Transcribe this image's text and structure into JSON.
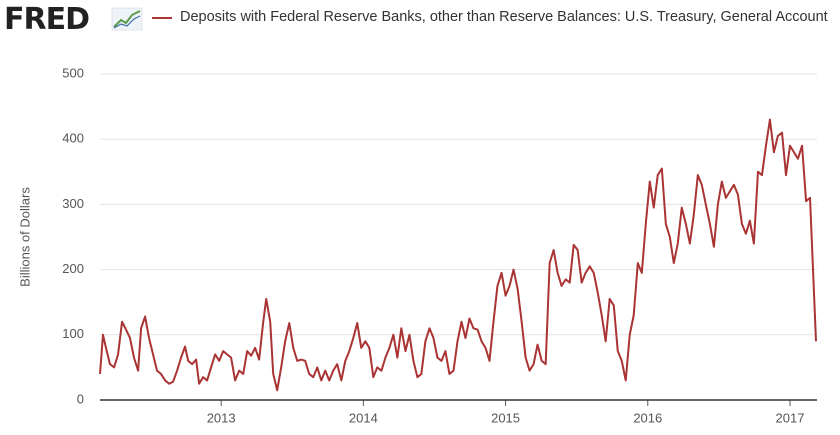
{
  "chart_data": {
    "type": "line",
    "logo": "FRED",
    "title": "Deposits with Federal Reserve Banks, other than Reserve Balances: U.S. Treasury, General Account",
    "y_label": "Billions of Dollars",
    "xlim": [
      2012.148,
      2017.19
    ],
    "xticks": [
      2013,
      2014,
      2015,
      2016,
      2017
    ],
    "ylim": [
      0,
      500
    ],
    "yticks": [
      0,
      100,
      200,
      300,
      400,
      500
    ],
    "grid": true,
    "series": [
      {
        "name": "Deposits with Federal Reserve Banks, other than Reserve Balances: U.S. Treasury, General Account",
        "color": "#aa3333",
        "x": [
          2012.148,
          2012.169,
          2012.19,
          2012.218,
          2012.247,
          2012.275,
          2012.303,
          2012.331,
          2012.359,
          2012.387,
          2012.416,
          2012.437,
          2012.465,
          2012.493,
          2012.521,
          2012.549,
          2012.577,
          2012.606,
          2012.634,
          2012.662,
          2012.69,
          2012.718,
          2012.746,
          2012.768,
          2012.796,
          2012.824,
          2012.845,
          2012.873,
          2012.901,
          2012.929,
          2012.958,
          2012.986,
          2013.014,
          2013.042,
          2013.07,
          2013.098,
          2013.127,
          2013.155,
          2013.183,
          2013.211,
          2013.239,
          2013.267,
          2013.296,
          2013.317,
          2013.345,
          2013.366,
          2013.394,
          2013.422,
          2013.45,
          2013.479,
          2013.507,
          2013.535,
          2013.563,
          2013.591,
          2013.619,
          2013.648,
          2013.676,
          2013.704,
          2013.732,
          2013.76,
          2013.788,
          2013.816,
          2013.845,
          2013.873,
          2013.901,
          2013.929,
          2013.957,
          2013.985,
          2014.014,
          2014.042,
          2014.07,
          2014.098,
          2014.127,
          2014.155,
          2014.183,
          2014.211,
          2014.239,
          2014.267,
          2014.296,
          2014.324,
          2014.352,
          2014.38,
          2014.408,
          2014.436,
          2014.465,
          2014.493,
          2014.521,
          2014.549,
          2014.577,
          2014.605,
          2014.634,
          2014.662,
          2014.69,
          2014.718,
          2014.746,
          2014.774,
          2014.803,
          2014.831,
          2014.859,
          2014.887,
          2014.915,
          2014.943,
          2014.972,
          2015.0,
          2015.028,
          2015.056,
          2015.085,
          2015.113,
          2015.141,
          2015.169,
          2015.197,
          2015.225,
          2015.254,
          2015.282,
          2015.31,
          2015.338,
          2015.366,
          2015.394,
          2015.423,
          2015.451,
          2015.479,
          2015.507,
          2015.535,
          2015.563,
          2015.592,
          2015.62,
          2015.648,
          2015.676,
          2015.704,
          2015.732,
          2015.761,
          2015.789,
          2015.817,
          2015.845,
          2015.873,
          2015.901,
          2015.93,
          2015.958,
          2015.986,
          2016.014,
          2016.042,
          2016.07,
          2016.099,
          2016.127,
          2016.155,
          2016.183,
          2016.211,
          2016.239,
          2016.268,
          2016.296,
          2016.324,
          2016.352,
          2016.38,
          2016.408,
          2016.437,
          2016.465,
          2016.493,
          2016.521,
          2016.549,
          2016.577,
          2016.606,
          2016.634,
          2016.662,
          2016.69,
          2016.718,
          2016.746,
          2016.775,
          2016.803,
          2016.831,
          2016.859,
          2016.887,
          2016.915,
          2016.944,
          2016.972,
          2017.0,
          2017.028,
          2017.056,
          2017.085,
          2017.113,
          2017.141,
          2017.183
        ],
        "values": [
          40,
          100,
          80,
          55,
          50,
          70,
          120,
          108,
          95,
          65,
          45,
          110,
          128,
          95,
          70,
          45,
          40,
          30,
          25,
          28,
          45,
          65,
          82,
          60,
          55,
          62,
          25,
          35,
          30,
          50,
          70,
          60,
          75,
          70,
          65,
          30,
          45,
          40,
          75,
          68,
          80,
          62,
          120,
          155,
          120,
          40,
          15,
          50,
          90,
          118,
          80,
          60,
          62,
          60,
          40,
          35,
          50,
          30,
          45,
          30,
          45,
          55,
          30,
          60,
          75,
          95,
          118,
          80,
          90,
          80,
          35,
          50,
          45,
          65,
          80,
          100,
          65,
          110,
          75,
          100,
          60,
          35,
          40,
          90,
          110,
          95,
          65,
          60,
          75,
          40,
          45,
          90,
          120,
          95,
          125,
          110,
          108,
          90,
          80,
          60,
          120,
          175,
          195,
          160,
          175,
          200,
          170,
          120,
          65,
          45,
          55,
          85,
          60,
          55,
          210,
          230,
          195,
          175,
          185,
          180,
          238,
          230,
          180,
          195,
          205,
          195,
          165,
          130,
          90,
          155,
          145,
          75,
          60,
          30,
          100,
          130,
          210,
          195,
          270,
          335,
          295,
          345,
          355,
          270,
          250,
          210,
          240,
          295,
          270,
          240,
          285,
          345,
          330,
          300,
          270,
          235,
          300,
          335,
          310,
          320,
          330,
          315,
          270,
          255,
          275,
          240,
          350,
          345,
          390,
          430,
          380,
          405,
          410,
          345,
          390,
          380,
          370,
          390,
          305,
          310,
          90
        ]
      }
    ]
  }
}
